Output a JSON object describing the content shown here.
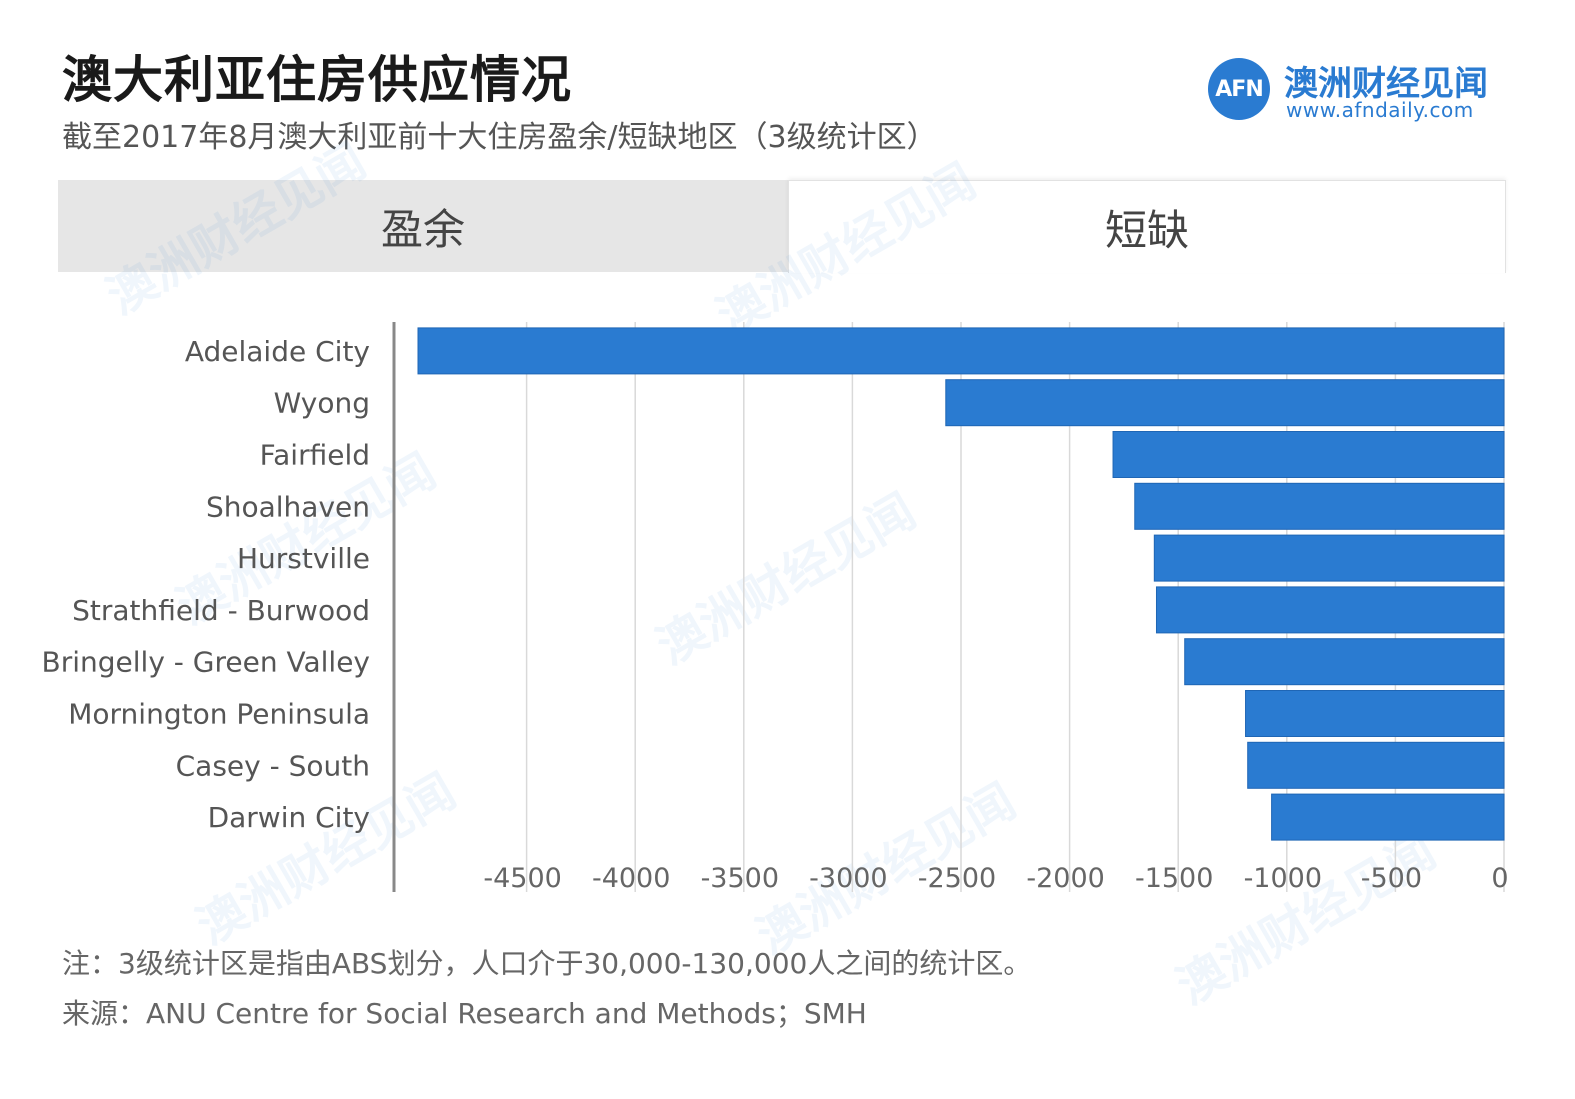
{
  "title": "澳大利亚住房供应情况",
  "subtitle": "截至2017年8月澳大利亚前十大住房盈余/短缺地区（3级统计区）",
  "logo": {
    "mark": "AFN",
    "name_cn": "澳洲财经见闻",
    "url": "www.afndaily.com"
  },
  "tabs": {
    "surplus": "盈余",
    "shortage": "短缺"
  },
  "watermark": "澳洲财经见闻",
  "note": "注：3级统计区是指由ABS划分，人口介于30,000-130,000人之间的统计区。",
  "source": "来源：ANU Centre for Social Research and Methods；SMH",
  "colors": {
    "bar": "#2a7bd1",
    "grid": "#d9d9d9",
    "axis": "#888888"
  },
  "chart_data": {
    "type": "bar",
    "orientation": "horizontal",
    "categories": [
      "Adelaide City",
      "Wyong",
      "Fairfield",
      "Shoalhaven",
      "Hurstville",
      "Strathfield - Burwood",
      "Bringelly - Green Valley",
      "Mornington Peninsula",
      "Casey - South",
      "Darwin City"
    ],
    "values": [
      -5000,
      -2570,
      -1800,
      -1700,
      -1610,
      -1600,
      -1470,
      -1190,
      -1180,
      -1070
    ],
    "xlim": [
      -5000,
      0
    ],
    "xticks": [
      -4500,
      -4000,
      -3500,
      -3000,
      -2500,
      -2000,
      -1500,
      -1000,
      -500,
      0
    ],
    "grid": true
  }
}
